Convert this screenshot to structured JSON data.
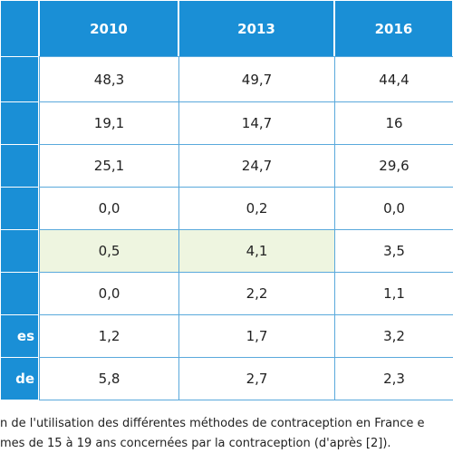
{
  "table": {
    "header": [
      "2010",
      "2013",
      "2016"
    ],
    "rows": [
      {
        "cells": [
          "48,3",
          "49,7",
          "44,4"
        ]
      },
      {
        "cells": [
          "19,1",
          "14,7",
          "16"
        ]
      },
      {
        "cells": [
          "25,1",
          "24,7",
          "29,6"
        ]
      },
      {
        "cells": [
          "0,0",
          "0,2",
          "0,0"
        ]
      },
      {
        "cells": [
          "0,5",
          "4,1",
          "3,5"
        ]
      },
      {
        "cells": [
          "0,0",
          "2,2",
          "1,1"
        ]
      },
      {
        "label": "es",
        "cells": [
          "1,2",
          "1,7",
          "3,2"
        ]
      },
      {
        "label": "de",
        "cells": [
          "5,8",
          "2,7",
          "2,3"
        ]
      }
    ]
  },
  "caption": [
    "n de l'utilisation des différentes méthodes de contraception en France e",
    "mes de 15 à 19 ans concernées par la contraception (d'après [2])."
  ]
}
